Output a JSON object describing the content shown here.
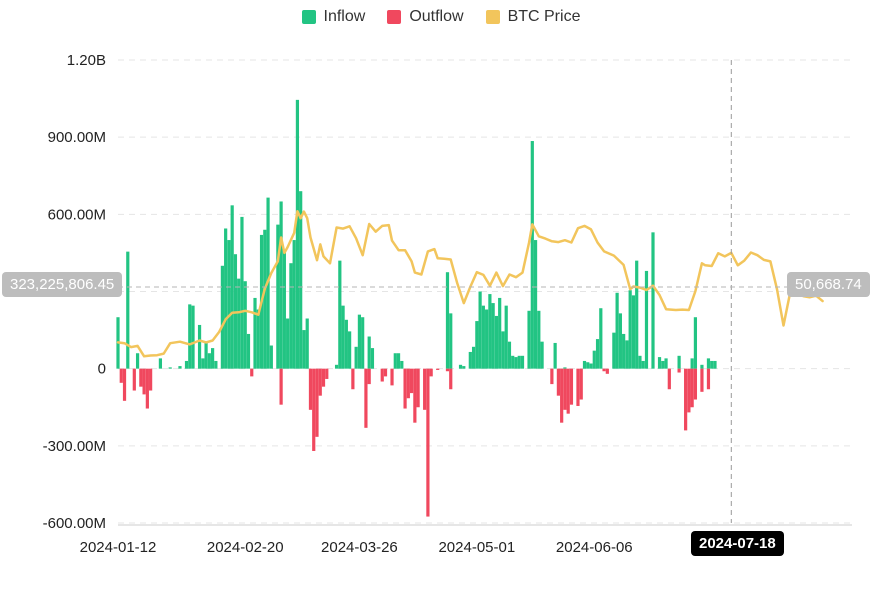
{
  "legend": {
    "inflow_label": "Inflow",
    "outflow_label": "Outflow",
    "price_label": "BTC Price"
  },
  "colors": {
    "inflow": "#22c483",
    "outflow": "#f0485e",
    "price": "#f2c55c",
    "grid": "#e5e5e5",
    "axis_text": "#222222"
  },
  "crosshair": {
    "date": "2024-07-18",
    "flow_value": "323,225,806.45",
    "price_value": "50,668.74"
  },
  "chart_data": {
    "type": "bar",
    "title": "",
    "xlabel": "",
    "ylabel": "",
    "ylim": [
      -600000000,
      1200000000
    ],
    "y_ticks": [
      "1.20B",
      "900.00M",
      "600.00M",
      "",
      "0",
      "-300.00M",
      "-600.00M"
    ],
    "x_ticks": [
      "2024-01-12",
      "2024-02-20",
      "2024-03-26",
      "2024-05-01",
      "2024-06-06",
      "2024-07-18"
    ],
    "grid": true,
    "legend_position": "top",
    "x_start": "2024-01-12",
    "x_end": "2024-08-24",
    "inflow": [
      [
        "2024-01-12",
        200
      ],
      [
        "2024-01-15",
        455
      ],
      [
        "2024-01-18",
        60
      ],
      [
        "2024-01-25",
        40
      ],
      [
        "2024-01-28",
        5
      ],
      [
        "2024-01-31",
        10
      ],
      [
        "2024-02-02",
        30
      ],
      [
        "2024-02-03",
        250
      ],
      [
        "2024-02-04",
        245
      ],
      [
        "2024-02-06",
        170
      ],
      [
        "2024-02-07",
        40
      ],
      [
        "2024-02-08",
        100
      ],
      [
        "2024-02-09",
        60
      ],
      [
        "2024-02-10",
        80
      ],
      [
        "2024-02-11",
        30
      ],
      [
        "2024-02-13",
        400
      ],
      [
        "2024-02-14",
        545
      ],
      [
        "2024-02-15",
        500
      ],
      [
        "2024-02-16",
        635
      ],
      [
        "2024-02-17",
        445
      ],
      [
        "2024-02-18",
        350
      ],
      [
        "2024-02-19",
        590
      ],
      [
        "2024-02-20",
        340
      ],
      [
        "2024-02-21",
        135
      ],
      [
        "2024-02-23",
        275
      ],
      [
        "2024-02-24",
        230
      ],
      [
        "2024-02-25",
        520
      ],
      [
        "2024-02-26",
        540
      ],
      [
        "2024-02-27",
        665
      ],
      [
        "2024-02-28",
        90
      ],
      [
        "2024-03-01",
        560
      ],
      [
        "2024-03-02",
        650
      ],
      [
        "2024-03-03",
        460
      ],
      [
        "2024-03-04",
        195
      ],
      [
        "2024-03-05",
        410
      ],
      [
        "2024-03-06",
        500
      ],
      [
        "2024-03-07",
        1045
      ],
      [
        "2024-03-08",
        690
      ],
      [
        "2024-03-09",
        150
      ],
      [
        "2024-03-10",
        195
      ],
      [
        "2024-03-19",
        15
      ],
      [
        "2024-03-20",
        420
      ],
      [
        "2024-03-21",
        245
      ],
      [
        "2024-03-22",
        190
      ],
      [
        "2024-03-23",
        145
      ],
      [
        "2024-03-25",
        85
      ],
      [
        "2024-03-26",
        210
      ],
      [
        "2024-03-27",
        200
      ],
      [
        "2024-03-29",
        125
      ],
      [
        "2024-03-30",
        80
      ],
      [
        "2024-04-06",
        60
      ],
      [
        "2024-04-07",
        60
      ],
      [
        "2024-04-08",
        30
      ],
      [
        "2024-04-22",
        375
      ],
      [
        "2024-04-23",
        215
      ],
      [
        "2024-04-26",
        15
      ],
      [
        "2024-04-27",
        10
      ],
      [
        "2024-04-29",
        65
      ],
      [
        "2024-04-30",
        85
      ],
      [
        "2024-05-01",
        185
      ],
      [
        "2024-05-02",
        300
      ],
      [
        "2024-05-03",
        245
      ],
      [
        "2024-05-04",
        230
      ],
      [
        "2024-05-05",
        290
      ],
      [
        "2024-05-06",
        255
      ],
      [
        "2024-05-07",
        205
      ],
      [
        "2024-05-08",
        275
      ],
      [
        "2024-05-09",
        145
      ],
      [
        "2024-05-10",
        245
      ],
      [
        "2024-05-11",
        105
      ],
      [
        "2024-05-12",
        50
      ],
      [
        "2024-05-13",
        45
      ],
      [
        "2024-05-14",
        50
      ],
      [
        "2024-05-15",
        50
      ],
      [
        "2024-05-17",
        225
      ],
      [
        "2024-05-18",
        885
      ],
      [
        "2024-05-19",
        500
      ],
      [
        "2024-05-20",
        225
      ],
      [
        "2024-05-21",
        105
      ],
      [
        "2024-05-25",
        100
      ],
      [
        "2024-05-28",
        5
      ],
      [
        "2024-06-03",
        30
      ],
      [
        "2024-06-04",
        25
      ],
      [
        "2024-06-05",
        20
      ],
      [
        "2024-06-06",
        70
      ],
      [
        "2024-06-07",
        115
      ],
      [
        "2024-06-08",
        235
      ],
      [
        "2024-06-12",
        140
      ],
      [
        "2024-06-13",
        295
      ],
      [
        "2024-06-14",
        215
      ],
      [
        "2024-06-15",
        135
      ],
      [
        "2024-06-16",
        110
      ],
      [
        "2024-06-17",
        305
      ],
      [
        "2024-06-18",
        285
      ],
      [
        "2024-06-19",
        420
      ],
      [
        "2024-06-20",
        50
      ],
      [
        "2024-06-21",
        30
      ],
      [
        "2024-06-22",
        380
      ],
      [
        "2024-06-24",
        530
      ],
      [
        "2024-06-26",
        45
      ],
      [
        "2024-06-27",
        30
      ],
      [
        "2024-06-28",
        40
      ],
      [
        "2024-07-02",
        50
      ],
      [
        "2024-07-06",
        40
      ],
      [
        "2024-07-07",
        200
      ],
      [
        "2024-07-09",
        15
      ],
      [
        "2024-07-11",
        40
      ],
      [
        "2024-07-12",
        30
      ],
      [
        "2024-07-13",
        30
      ]
    ],
    "outflow": [
      [
        "2024-01-13",
        -55
      ],
      [
        "2024-01-14",
        -125
      ],
      [
        "2024-01-17",
        -85
      ],
      [
        "2024-01-19",
        -70
      ],
      [
        "2024-01-20",
        -100
      ],
      [
        "2024-01-21",
        -155
      ],
      [
        "2024-01-22",
        -85
      ],
      [
        "2024-02-22",
        -30
      ],
      [
        "2024-03-02",
        -140
      ],
      [
        "2024-03-11",
        -160
      ],
      [
        "2024-03-12",
        -320
      ],
      [
        "2024-03-13",
        -265
      ],
      [
        "2024-03-14",
        -105
      ],
      [
        "2024-03-15",
        -70
      ],
      [
        "2024-03-16",
        -40
      ],
      [
        "2024-03-24",
        -80
      ],
      [
        "2024-03-28",
        -230
      ],
      [
        "2024-03-29",
        -60
      ],
      [
        "2024-04-02",
        -50
      ],
      [
        "2024-04-03",
        -30
      ],
      [
        "2024-04-05",
        -65
      ],
      [
        "2024-04-09",
        -155
      ],
      [
        "2024-04-10",
        -115
      ],
      [
        "2024-04-11",
        -95
      ],
      [
        "2024-04-12",
        -210
      ],
      [
        "2024-04-13",
        -150
      ],
      [
        "2024-04-15",
        -160
      ],
      [
        "2024-04-16",
        -575
      ],
      [
        "2024-04-17",
        -30
      ],
      [
        "2024-04-19",
        -5
      ],
      [
        "2024-04-22",
        -10
      ],
      [
        "2024-04-23",
        -80
      ],
      [
        "2024-05-24",
        -60
      ],
      [
        "2024-05-26",
        -105
      ],
      [
        "2024-05-27",
        -210
      ],
      [
        "2024-05-28",
        -160
      ],
      [
        "2024-05-29",
        -175
      ],
      [
        "2024-05-30",
        -140
      ],
      [
        "2024-06-01",
        -145
      ],
      [
        "2024-06-02",
        -120
      ],
      [
        "2024-06-09",
        -10
      ],
      [
        "2024-06-10",
        -20
      ],
      [
        "2024-06-29",
        -80
      ],
      [
        "2024-07-02",
        -15
      ],
      [
        "2024-07-04",
        -240
      ],
      [
        "2024-07-05",
        -170
      ],
      [
        "2024-07-06",
        -150
      ],
      [
        "2024-07-07",
        -120
      ],
      [
        "2024-07-09",
        -90
      ],
      [
        "2024-07-11",
        -80
      ]
    ],
    "price": [
      [
        "2024-01-12",
        46800
      ],
      [
        "2024-01-14",
        46600
      ],
      [
        "2024-01-16",
        45600
      ],
      [
        "2024-01-18",
        45900
      ],
      [
        "2024-01-20",
        43200
      ],
      [
        "2024-01-22",
        43400
      ],
      [
        "2024-01-24",
        43500
      ],
      [
        "2024-01-26",
        43900
      ],
      [
        "2024-01-28",
        46600
      ],
      [
        "2024-01-31",
        47000
      ],
      [
        "2024-02-03",
        46300
      ],
      [
        "2024-02-06",
        47300
      ],
      [
        "2024-02-08",
        46800
      ],
      [
        "2024-02-10",
        47300
      ],
      [
        "2024-02-12",
        49500
      ],
      [
        "2024-02-14",
        52800
      ],
      [
        "2024-02-16",
        54500
      ],
      [
        "2024-02-18",
        54600
      ],
      [
        "2024-02-20",
        55000
      ],
      [
        "2024-02-22",
        54600
      ],
      [
        "2024-02-24",
        54000
      ],
      [
        "2024-02-26",
        60700
      ],
      [
        "2024-02-28",
        64800
      ],
      [
        "2024-03-01",
        67800
      ],
      [
        "2024-03-02",
        74000
      ],
      [
        "2024-03-03",
        70000
      ],
      [
        "2024-03-04",
        71500
      ],
      [
        "2024-03-06",
        75200
      ],
      [
        "2024-03-07",
        80800
      ],
      [
        "2024-03-08",
        79000
      ],
      [
        "2024-03-09",
        80700
      ],
      [
        "2024-03-10",
        79000
      ],
      [
        "2024-03-11",
        74000
      ],
      [
        "2024-03-13",
        68100
      ],
      [
        "2024-03-14",
        72200
      ],
      [
        "2024-03-15",
        69100
      ],
      [
        "2024-03-17",
        67300
      ],
      [
        "2024-03-19",
        76600
      ],
      [
        "2024-03-21",
        76300
      ],
      [
        "2024-03-23",
        76900
      ],
      [
        "2024-03-25",
        73800
      ],
      [
        "2024-03-27",
        69400
      ],
      [
        "2024-03-29",
        77500
      ],
      [
        "2024-03-31",
        75500
      ],
      [
        "2024-04-02",
        77000
      ],
      [
        "2024-04-04",
        77200
      ],
      [
        "2024-04-05",
        73200
      ],
      [
        "2024-04-07",
        70700
      ],
      [
        "2024-04-09",
        70700
      ],
      [
        "2024-04-11",
        67800
      ],
      [
        "2024-04-12",
        64900
      ],
      [
        "2024-04-14",
        64400
      ],
      [
        "2024-04-16",
        70400
      ],
      [
        "2024-04-18",
        71000
      ],
      [
        "2024-04-19",
        68600
      ],
      [
        "2024-04-21",
        68500
      ],
      [
        "2024-04-23",
        68300
      ],
      [
        "2024-04-25",
        62100
      ],
      [
        "2024-04-27",
        57000
      ],
      [
        "2024-04-29",
        61200
      ],
      [
        "2024-05-01",
        65000
      ],
      [
        "2024-05-03",
        64300
      ],
      [
        "2024-05-05",
        61500
      ],
      [
        "2024-05-07",
        64900
      ],
      [
        "2024-05-09",
        61400
      ],
      [
        "2024-05-11",
        64400
      ],
      [
        "2024-05-13",
        63700
      ],
      [
        "2024-05-15",
        64900
      ],
      [
        "2024-05-17",
        72600
      ],
      [
        "2024-05-18",
        77400
      ],
      [
        "2024-05-20",
        74300
      ],
      [
        "2024-05-22",
        73700
      ],
      [
        "2024-05-24",
        73000
      ],
      [
        "2024-05-26",
        72800
      ],
      [
        "2024-05-28",
        73300
      ],
      [
        "2024-05-30",
        72700
      ],
      [
        "2024-06-01",
        76400
      ],
      [
        "2024-06-03",
        77000
      ],
      [
        "2024-06-05",
        76100
      ],
      [
        "2024-06-07",
        72700
      ],
      [
        "2024-06-09",
        70400
      ],
      [
        "2024-06-12",
        69300
      ],
      [
        "2024-06-15",
        66900
      ],
      [
        "2024-06-17",
        60600
      ],
      [
        "2024-06-18",
        61300
      ],
      [
        "2024-06-20",
        61000
      ],
      [
        "2024-06-22",
        60400
      ],
      [
        "2024-06-24",
        61500
      ],
      [
        "2024-06-26",
        59100
      ],
      [
        "2024-06-28",
        55400
      ],
      [
        "2024-07-01",
        55200
      ],
      [
        "2024-07-03",
        55300
      ],
      [
        "2024-07-05",
        55200
      ],
      [
        "2024-07-07",
        60100
      ],
      [
        "2024-07-09",
        67300
      ],
      [
        "2024-07-10",
        66800
      ],
      [
        "2024-07-12",
        66600
      ],
      [
        "2024-07-14",
        69900
      ],
      [
        "2024-07-16",
        69100
      ],
      [
        "2024-07-18",
        70000
      ],
      [
        "2024-07-20",
        66800
      ],
      [
        "2024-07-22",
        68000
      ],
      [
        "2024-07-24",
        70100
      ],
      [
        "2024-07-26",
        69400
      ],
      [
        "2024-07-28",
        68200
      ],
      [
        "2024-07-30",
        67800
      ],
      [
        "2024-08-01",
        60600
      ],
      [
        "2024-08-03",
        51200
      ],
      [
        "2024-08-05",
        59500
      ],
      [
        "2024-08-07",
        63300
      ],
      [
        "2024-08-09",
        58800
      ],
      [
        "2024-08-11",
        58500
      ],
      [
        "2024-08-13",
        58900
      ],
      [
        "2024-08-15",
        57500
      ]
    ]
  }
}
